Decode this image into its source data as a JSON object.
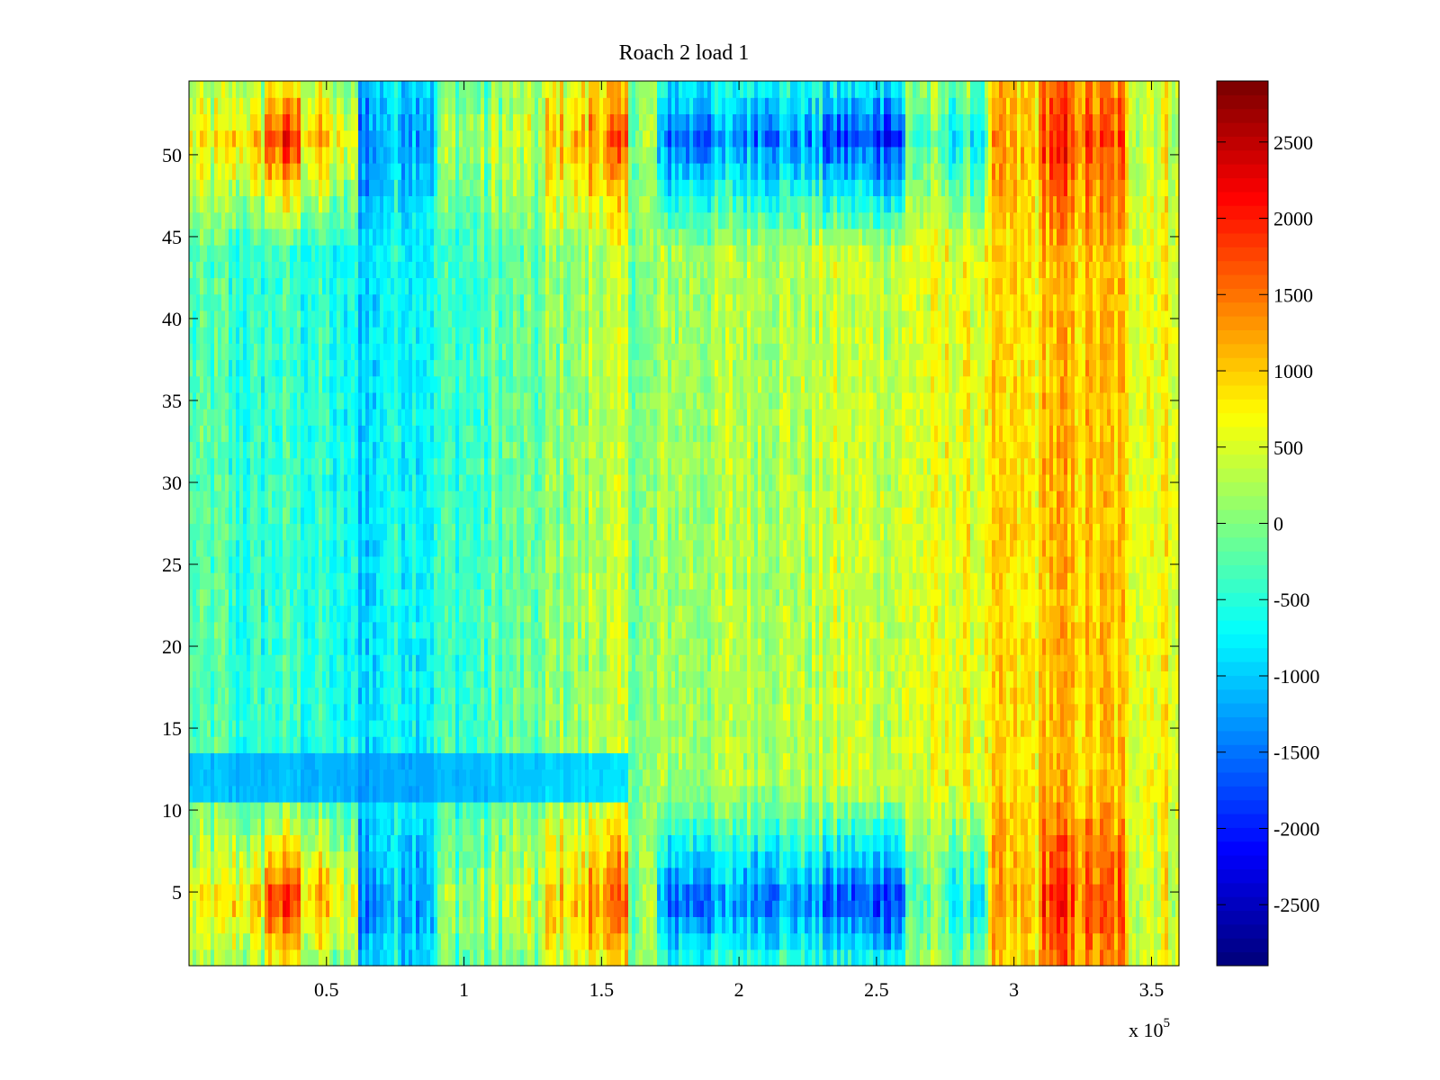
{
  "chart_data": {
    "type": "heatmap",
    "title": "Roach 2 load 1",
    "xlabel": "",
    "ylabel": "",
    "x_range": [
      0,
      360000
    ],
    "y_range": [
      0.5,
      54.5
    ],
    "x_ticks": [
      50000,
      100000,
      150000,
      200000,
      250000,
      300000,
      350000
    ],
    "x_tick_labels": [
      "0.5",
      "1",
      "1.5",
      "2",
      "2.5",
      "3",
      "3.5"
    ],
    "x_exponent_label": {
      "base": "x 10",
      "exponent": "5"
    },
    "y_ticks": [
      5,
      10,
      15,
      20,
      25,
      30,
      35,
      40,
      45,
      50
    ],
    "y_tick_labels": [
      "5",
      "10",
      "15",
      "20",
      "25",
      "30",
      "35",
      "40",
      "45",
      "50"
    ],
    "rows": 54,
    "colorbar": {
      "colormap": "jet",
      "range": [
        -2900,
        2900
      ],
      "ticks": [
        -2500,
        -2000,
        -1500,
        -1000,
        -500,
        0,
        500,
        1000,
        1500,
        2000,
        2500
      ],
      "tick_labels": [
        "-2500",
        "-2000",
        "-1500",
        "-1000",
        "-500",
        "0",
        "500",
        "1000",
        "1500",
        "2000",
        "2500"
      ],
      "levels": 64
    },
    "bands": [
      {
        "x": [
          0,
          15000
        ],
        "edge": 600,
        "mid": -300
      },
      {
        "x": [
          15000,
          28000
        ],
        "edge": 900,
        "mid": -500
      },
      {
        "x": [
          28000,
          40000
        ],
        "edge": 1800,
        "mid": -400
      },
      {
        "x": [
          40000,
          52000
        ],
        "edge": 1100,
        "mid": -500
      },
      {
        "x": [
          52000,
          62000
        ],
        "edge": 500,
        "mid": -700
      },
      {
        "x": [
          62000,
          70000
        ],
        "edge": -1300,
        "mid": -900
      },
      {
        "x": [
          70000,
          90000
        ],
        "edge": -1000,
        "mid": -600
      },
      {
        "x": [
          90000,
          110000
        ],
        "edge": 100,
        "mid": -400
      },
      {
        "x": [
          110000,
          130000
        ],
        "edge": 300,
        "mid": -200
      },
      {
        "x": [
          130000,
          145000
        ],
        "edge": 1000,
        "mid": 100
      },
      {
        "x": [
          145000,
          160000
        ],
        "edge": 1400,
        "mid": 300
      },
      {
        "x": [
          160000,
          170000
        ],
        "edge": 200,
        "mid": 0
      },
      {
        "x": [
          170000,
          195000
        ],
        "edge": -1500,
        "mid": 200
      },
      {
        "x": [
          195000,
          230000
        ],
        "edge": -1300,
        "mid": 300
      },
      {
        "x": [
          230000,
          260000
        ],
        "edge": -1800,
        "mid": 400
      },
      {
        "x": [
          260000,
          275000
        ],
        "edge": -300,
        "mid": 500
      },
      {
        "x": [
          275000,
          290000
        ],
        "edge": -700,
        "mid": 600
      },
      {
        "x": [
          290000,
          310000
        ],
        "edge": 1000,
        "mid": 800
      },
      {
        "x": [
          310000,
          320000
        ],
        "edge": 1900,
        "mid": 1100
      },
      {
        "x": [
          320000,
          340000
        ],
        "edge": 1600,
        "mid": 1000
      },
      {
        "x": [
          340000,
          360000
        ],
        "edge": 600,
        "mid": 700
      }
    ],
    "row_band": {
      "y": [
        11,
        13
      ],
      "x": [
        0,
        160000
      ],
      "value": -1400
    }
  }
}
